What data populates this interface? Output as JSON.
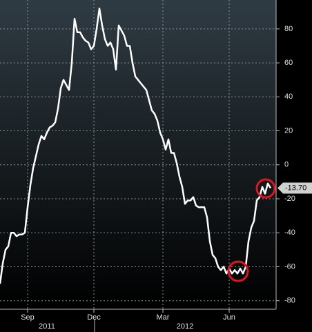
{
  "chart_data": {
    "type": "line",
    "values": [
      -70,
      -58,
      -50,
      -48,
      -40,
      -40,
      -42,
      -41,
      -41,
      -40,
      -25,
      -12,
      -2,
      5,
      12,
      17,
      15,
      19,
      22,
      23,
      25,
      33,
      45,
      50,
      47,
      44,
      60,
      86,
      78,
      78,
      75,
      73,
      72,
      68,
      70,
      80,
      92,
      82,
      74,
      70,
      72,
      68,
      56,
      82,
      79,
      76,
      70,
      70,
      60,
      52,
      50,
      48,
      46,
      44,
      38,
      32,
      30,
      26,
      19,
      15,
      9,
      15,
      7,
      7,
      1,
      -7,
      -13,
      -23,
      -21,
      -21,
      -19,
      -24,
      -25,
      -25,
      -25,
      -31,
      -45,
      -53,
      -55,
      -60,
      -62,
      -60,
      -64,
      -61,
      -64,
      -62,
      -64,
      -61,
      -64,
      -60,
      -45,
      -37,
      -33,
      -21,
      -19,
      -13,
      -17,
      -11,
      -13.7
    ],
    "color": "#ffffff",
    "last_value_label": "-13.70",
    "xlim": [
      0,
      100
    ],
    "xticks": [
      {
        "value": 10,
        "label": "Sep"
      },
      {
        "value": 34,
        "label": "Dec"
      },
      {
        "value": 59,
        "label": "Mar"
      },
      {
        "value": 83,
        "label": "Jun"
      }
    ],
    "year_ticks": [
      {
        "value": 17,
        "label": "2011"
      },
      {
        "value": 67,
        "label": "2012"
      }
    ],
    "ylim": [
      -85,
      97
    ],
    "yticks": [
      -80,
      -60,
      -40,
      -20,
      0,
      20,
      40,
      60,
      80
    ],
    "grid": true
  }
}
